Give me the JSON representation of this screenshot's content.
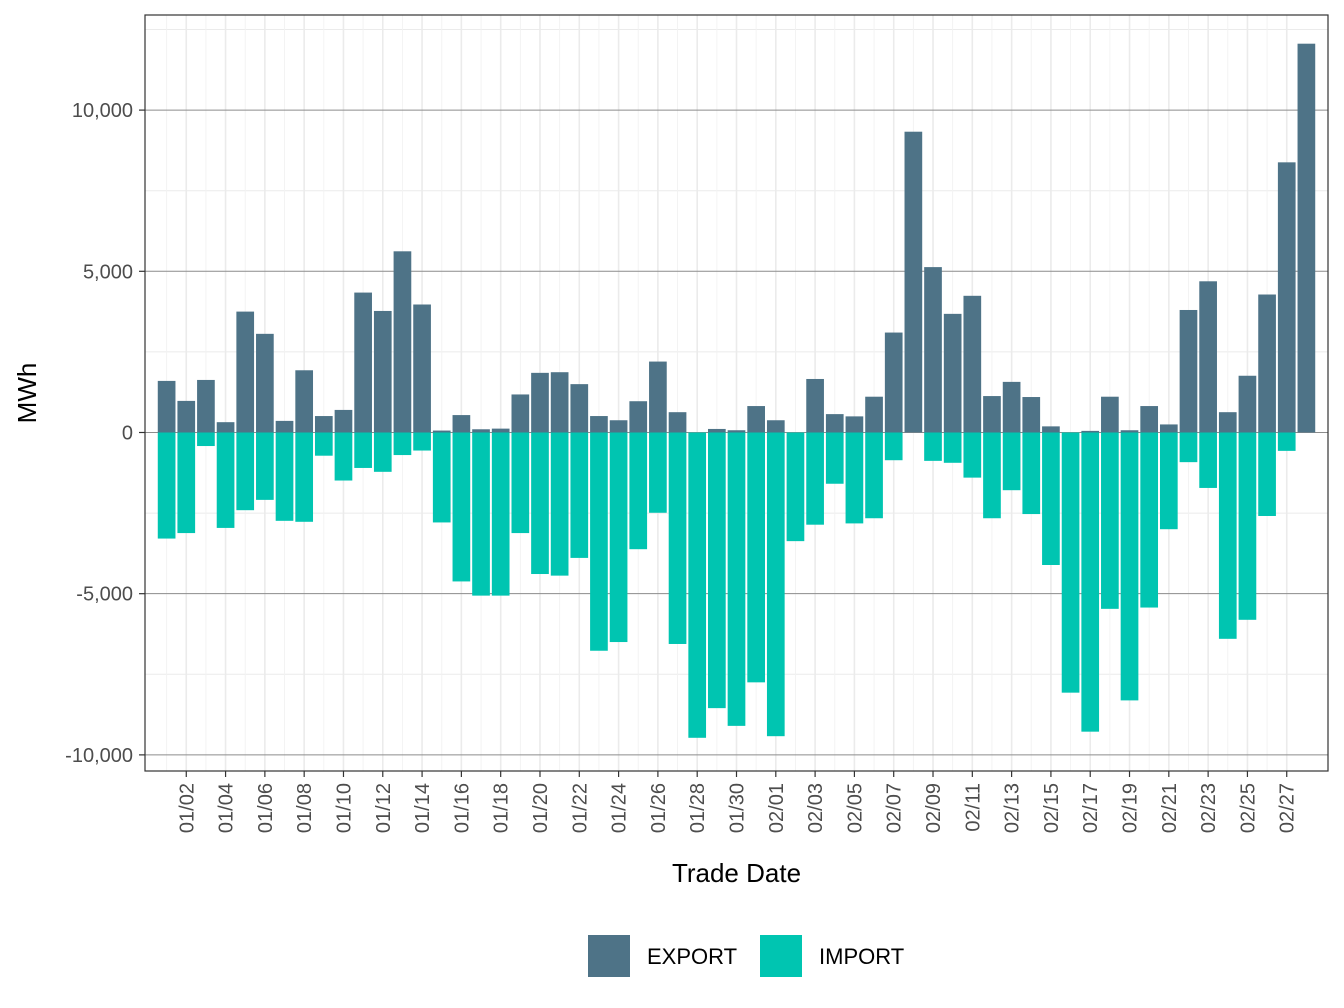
{
  "chart_data": {
    "type": "bar",
    "stacked": true,
    "x_dates": [
      "01/01",
      "01/02",
      "01/03",
      "01/04",
      "01/05",
      "01/06",
      "01/07",
      "01/08",
      "01/09",
      "01/10",
      "01/11",
      "01/12",
      "01/13",
      "01/14",
      "01/15",
      "01/16",
      "01/17",
      "01/18",
      "01/19",
      "01/20",
      "01/21",
      "01/22",
      "01/23",
      "01/24",
      "01/25",
      "01/26",
      "01/27",
      "01/28",
      "01/29",
      "01/30",
      "01/31",
      "02/01",
      "02/02",
      "02/03",
      "02/04",
      "02/05",
      "02/06",
      "02/07",
      "02/08",
      "02/09",
      "02/10",
      "02/11",
      "02/12",
      "02/13",
      "02/14",
      "02/15",
      "02/16",
      "02/17",
      "02/18",
      "02/19",
      "02/20",
      "02/21",
      "02/22",
      "02/23",
      "02/24",
      "02/25",
      "02/26",
      "02/27",
      "02/28"
    ],
    "tick_labels": [
      "01/02",
      "01/04",
      "01/06",
      "01/08",
      "01/10",
      "01/12",
      "01/14",
      "01/16",
      "01/18",
      "01/20",
      "01/22",
      "01/24",
      "01/26",
      "01/28",
      "01/30",
      "02/01",
      "02/03",
      "02/05",
      "02/07",
      "02/09",
      "02/11",
      "02/13",
      "02/15",
      "02/17",
      "02/19",
      "02/21",
      "02/23",
      "02/25",
      "02/27"
    ],
    "series": [
      {
        "name": "EXPORT",
        "color": "#4e7387",
        "values": [
          1600,
          980,
          1630,
          320,
          3750,
          3060,
          360,
          1930,
          510,
          700,
          4340,
          3770,
          5620,
          3970,
          60,
          540,
          100,
          120,
          1180,
          1850,
          1870,
          1500,
          510,
          380,
          970,
          2200,
          630,
          0,
          110,
          70,
          820,
          380,
          0,
          1660,
          570,
          500,
          1110,
          3100,
          9330,
          5130,
          3680,
          4240,
          1130,
          1570,
          1100,
          190,
          0,
          50,
          1110,
          70,
          820,
          250,
          3800,
          4690,
          630,
          1760,
          4280,
          8380,
          12060
        ]
      },
      {
        "name": "IMPORT",
        "color": "#00c5b1",
        "values": [
          -3290,
          -3120,
          -420,
          -2960,
          -2410,
          -2090,
          -2740,
          -2770,
          -720,
          -1490,
          -1100,
          -1220,
          -700,
          -560,
          -2790,
          -4620,
          -5060,
          -5060,
          -3120,
          -4390,
          -4440,
          -3890,
          -6770,
          -6500,
          -3620,
          -2490,
          -6560,
          -9470,
          -8550,
          -9100,
          -7750,
          -9420,
          -3370,
          -2860,
          -1590,
          -2820,
          -2660,
          -860,
          0,
          -880,
          -940,
          -1400,
          -2660,
          -1790,
          -2530,
          -4110,
          -8070,
          -9280,
          -5470,
          -8310,
          -5430,
          -3000,
          -920,
          -1720,
          -6400,
          -5810,
          -2590,
          -570,
          0
        ]
      }
    ],
    "xlabel": "Trade Date",
    "ylabel": "MWh",
    "ylim": [
      -10500,
      12950
    ],
    "yticks": [
      -10000,
      -5000,
      0,
      5000,
      10000
    ],
    "ytick_labels": [
      "-10,000",
      "-5,000",
      "0",
      "5,000",
      "10,000"
    ],
    "grid": true,
    "legend_position": "bottom"
  }
}
